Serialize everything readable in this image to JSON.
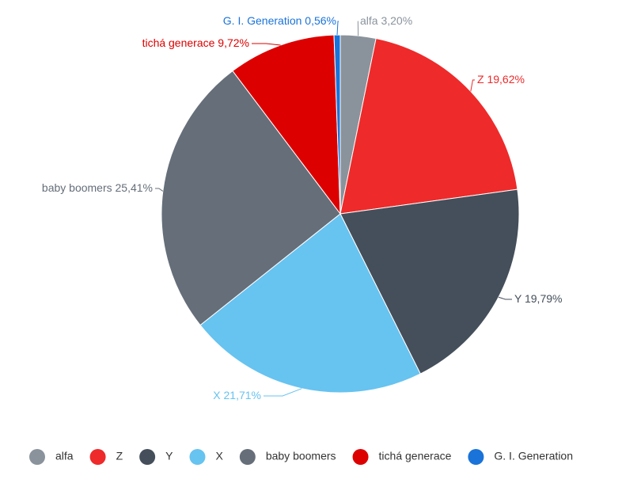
{
  "chart_data": {
    "type": "pie",
    "categories": [
      "alfa",
      "Z",
      "Y",
      "X",
      "baby boomers",
      "tichá generace",
      "G. I. Generation"
    ],
    "values": [
      3.2,
      19.62,
      19.79,
      21.71,
      25.41,
      9.72,
      0.56
    ],
    "value_labels": [
      "3,20%",
      "19,62%",
      "19,79%",
      "21,71%",
      "25,41%",
      "9,72%",
      "0,56%"
    ],
    "colors": [
      "#8a939c",
      "#ee2a2a",
      "#454f5b",
      "#67c3f0",
      "#656e79",
      "#dd0000",
      "#1a73d9"
    ],
    "legend": "bottom"
  }
}
